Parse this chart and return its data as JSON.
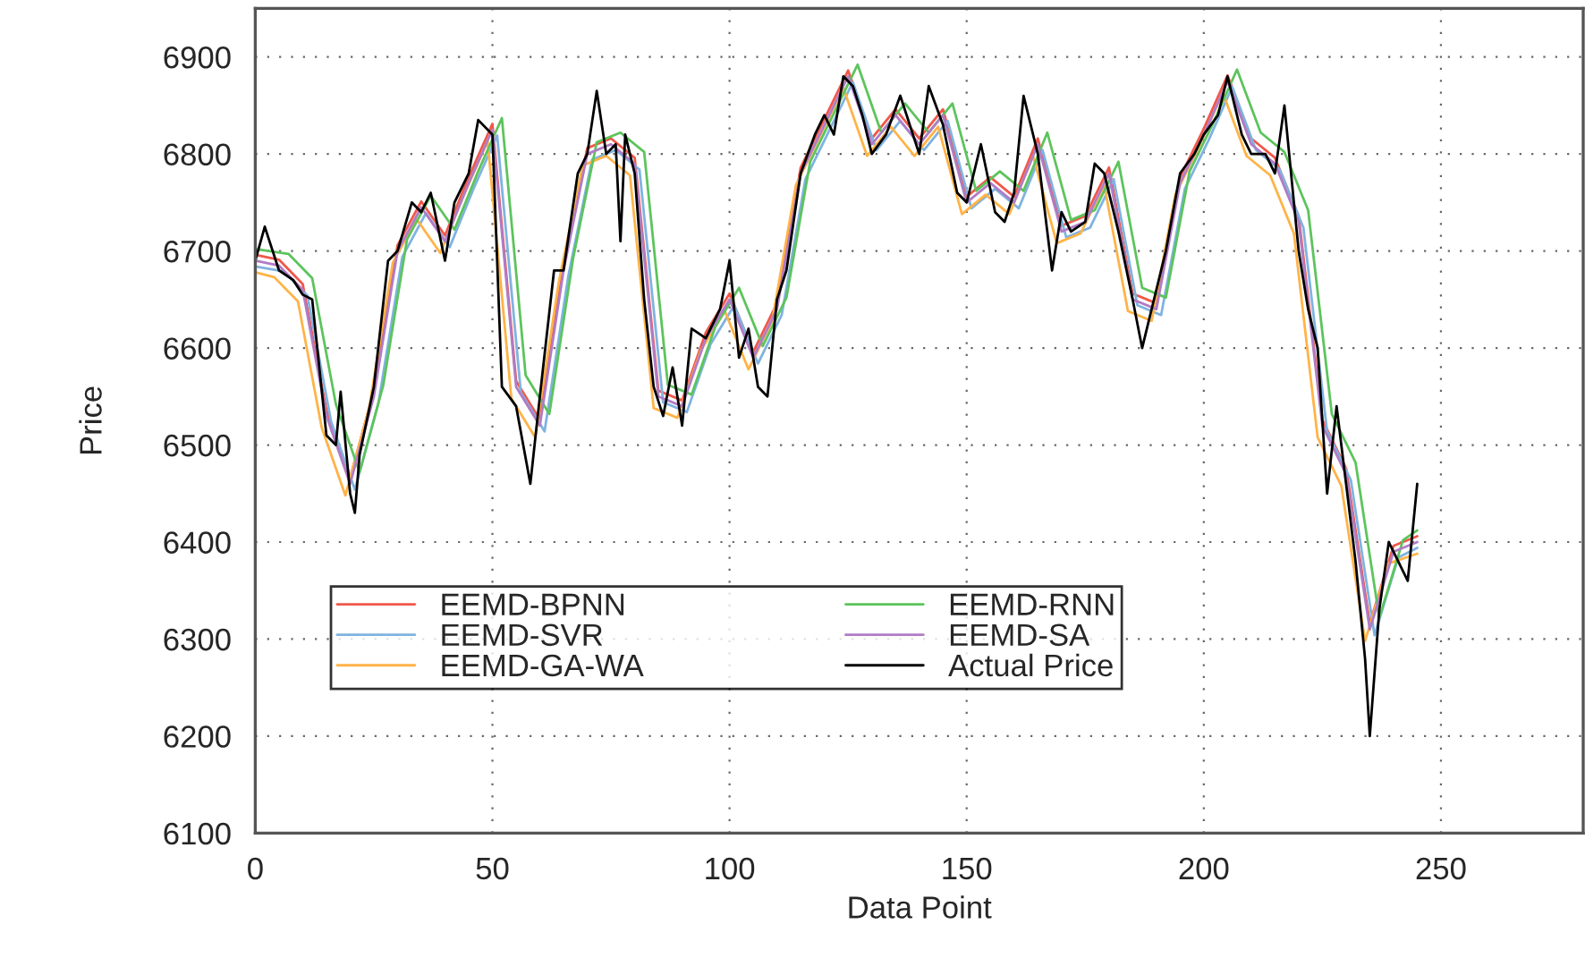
{
  "chart_data": {
    "type": "line",
    "xlabel": "Data Point",
    "ylabel": "Price",
    "xlim": [
      0,
      280
    ],
    "xticks": [
      0,
      50,
      100,
      150,
      200,
      250
    ],
    "ylim": [
      6100,
      6950
    ],
    "yticks": [
      6100,
      6200,
      6300,
      6400,
      6500,
      6600,
      6700,
      6800,
      6900
    ],
    "grid": true,
    "legend": "bottom left",
    "marker": "none",
    "line_style": "solid",
    "series": [
      {
        "name": "EEMD-BPNN",
        "color": "#f0584a",
        "x": [
          0,
          5,
          10,
          15,
          20,
          25,
          30,
          35,
          40,
          45,
          50,
          55,
          60,
          65,
          70,
          75,
          80,
          85,
          90,
          95,
          100,
          105,
          110,
          115,
          120,
          125,
          130,
          135,
          140,
          145,
          150,
          155,
          160,
          165,
          170,
          175,
          180,
          185,
          190,
          195,
          200,
          205,
          210,
          215,
          220,
          225,
          230,
          235,
          240,
          245
        ],
        "values": [
          6696,
          6691,
          6666,
          6536,
          6466,
          6556,
          6706,
          6751,
          6716,
          6776,
          6831,
          6566,
          6526,
          6686,
          6806,
          6816,
          6796,
          6556,
          6546,
          6616,
          6656,
          6596,
          6646,
          6786,
          6836,
          6886,
          6816,
          6846,
          6816,
          6846,
          6756,
          6776,
          6756,
          6816,
          6726,
          6736,
          6786,
          6656,
          6646,
          6776,
          6826,
          6881,
          6816,
          6796,
          6736,
          6526,
          6476,
          6316,
          6396,
          6406
        ]
      },
      {
        "name": "EEMD-SVR",
        "color": "#7fb3e0",
        "x": [
          0,
          6,
          11,
          16,
          21,
          26,
          31,
          36,
          41,
          46,
          51,
          56,
          61,
          66,
          71,
          76,
          81,
          86,
          91,
          96,
          101,
          106,
          111,
          116,
          121,
          126,
          131,
          136,
          141,
          146,
          151,
          156,
          161,
          166,
          171,
          176,
          181,
          186,
          191,
          196,
          201,
          206,
          211,
          216,
          221,
          226,
          231,
          236,
          241,
          245
        ],
        "values": [
          6684,
          6679,
          6654,
          6524,
          6454,
          6544,
          6694,
          6739,
          6704,
          6764,
          6819,
          6554,
          6514,
          6674,
          6794,
          6804,
          6784,
          6544,
          6534,
          6604,
          6644,
          6584,
          6634,
          6774,
          6824,
          6874,
          6804,
          6834,
          6804,
          6834,
          6744,
          6764,
          6744,
          6804,
          6714,
          6724,
          6774,
          6644,
          6634,
          6764,
          6814,
          6869,
          6804,
          6784,
          6724,
          6514,
          6464,
          6304,
          6384,
          6394
        ]
      },
      {
        "name": "EEMD-GA-WA",
        "color": "#ffb347",
        "x": [
          0,
          4,
          9,
          14,
          19,
          24,
          29,
          34,
          39,
          44,
          49,
          54,
          59,
          64,
          69,
          74,
          79,
          84,
          89,
          94,
          99,
          104,
          109,
          114,
          119,
          124,
          129,
          134,
          139,
          144,
          149,
          154,
          159,
          164,
          169,
          174,
          179,
          184,
          189,
          194,
          199,
          204,
          209,
          214,
          219,
          224,
          229,
          234,
          239,
          245
        ],
        "values": [
          6678,
          6673,
          6648,
          6518,
          6448,
          6538,
          6688,
          6733,
          6698,
          6758,
          6813,
          6548,
          6508,
          6668,
          6788,
          6798,
          6778,
          6538,
          6528,
          6598,
          6638,
          6578,
          6628,
          6768,
          6818,
          6868,
          6798,
          6828,
          6798,
          6828,
          6738,
          6758,
          6738,
          6798,
          6708,
          6718,
          6768,
          6638,
          6628,
          6758,
          6808,
          6863,
          6798,
          6778,
          6718,
          6508,
          6458,
          6298,
          6378,
          6388
        ]
      },
      {
        "name": "EEMD-RNN",
        "color": "#5cc45c",
        "x": [
          0,
          7,
          12,
          17,
          22,
          27,
          32,
          37,
          42,
          47,
          52,
          57,
          62,
          67,
          72,
          77,
          82,
          87,
          92,
          97,
          102,
          107,
          112,
          117,
          122,
          127,
          132,
          137,
          142,
          147,
          152,
          157,
          162,
          167,
          172,
          177,
          182,
          187,
          192,
          197,
          202,
          207,
          212,
          217,
          222,
          227,
          232,
          237,
          242,
          245
        ],
        "values": [
          6702,
          6697,
          6672,
          6542,
          6472,
          6562,
          6712,
          6757,
          6722,
          6782,
          6837,
          6572,
          6532,
          6692,
          6812,
          6822,
          6802,
          6562,
          6552,
          6622,
          6662,
          6602,
          6652,
          6792,
          6842,
          6892,
          6822,
          6852,
          6822,
          6852,
          6762,
          6782,
          6762,
          6822,
          6732,
          6742,
          6792,
          6662,
          6652,
          6782,
          6832,
          6887,
          6822,
          6802,
          6742,
          6532,
          6482,
          6322,
          6402,
          6412
        ]
      },
      {
        "name": "EEMD-SA",
        "color": "#b07cc6",
        "x": [
          0,
          5,
          10,
          15,
          20,
          25,
          30,
          35,
          40,
          45,
          50,
          55,
          60,
          65,
          70,
          75,
          80,
          85,
          90,
          95,
          100,
          105,
          110,
          115,
          120,
          125,
          130,
          135,
          140,
          145,
          150,
          155,
          160,
          165,
          170,
          175,
          180,
          185,
          190,
          195,
          200,
          205,
          210,
          215,
          220,
          225,
          230,
          235,
          240,
          245
        ],
        "values": [
          6690,
          6685,
          6660,
          6530,
          6460,
          6550,
          6700,
          6745,
          6710,
          6770,
          6825,
          6560,
          6520,
          6680,
          6800,
          6810,
          6790,
          6550,
          6540,
          6610,
          6650,
          6590,
          6640,
          6780,
          6830,
          6880,
          6810,
          6840,
          6810,
          6840,
          6750,
          6770,
          6750,
          6810,
          6720,
          6730,
          6780,
          6650,
          6640,
          6770,
          6820,
          6875,
          6810,
          6790,
          6730,
          6520,
          6470,
          6310,
          6390,
          6400
        ]
      },
      {
        "name": "Actual Price",
        "color": "#000000",
        "x": [
          0,
          2,
          5,
          8,
          10,
          12,
          15,
          17,
          18,
          20,
          21,
          22,
          25,
          28,
          30,
          33,
          35,
          37,
          40,
          42,
          45,
          47,
          50,
          52,
          55,
          58,
          60,
          63,
          65,
          68,
          70,
          72,
          74,
          76,
          77,
          78,
          80,
          82,
          84,
          86,
          88,
          90,
          92,
          95,
          98,
          100,
          102,
          104,
          106,
          108,
          110,
          112,
          115,
          118,
          120,
          122,
          124,
          126,
          128,
          130,
          133,
          136,
          140,
          142,
          145,
          148,
          150,
          153,
          156,
          158,
          160,
          162,
          165,
          168,
          170,
          172,
          175,
          177,
          179,
          182,
          185,
          187,
          189,
          192,
          195,
          198,
          200,
          203,
          205,
          208,
          210,
          213,
          215,
          217,
          220,
          222,
          224,
          226,
          228,
          230,
          232,
          234,
          235,
          237,
          239,
          241,
          243,
          245
        ],
        "values": [
          6690,
          6725,
          6680,
          6670,
          6655,
          6650,
          6510,
          6500,
          6555,
          6450,
          6430,
          6490,
          6560,
          6690,
          6700,
          6750,
          6740,
          6760,
          6690,
          6750,
          6780,
          6835,
          6820,
          6560,
          6540,
          6460,
          6550,
          6680,
          6680,
          6780,
          6800,
          6865,
          6800,
          6810,
          6710,
          6820,
          6780,
          6650,
          6560,
          6530,
          6580,
          6520,
          6620,
          6610,
          6640,
          6690,
          6590,
          6620,
          6560,
          6550,
          6650,
          6680,
          6780,
          6820,
          6840,
          6820,
          6880,
          6870,
          6840,
          6800,
          6820,
          6860,
          6800,
          6870,
          6830,
          6760,
          6750,
          6810,
          6740,
          6730,
          6760,
          6860,
          6800,
          6680,
          6740,
          6720,
          6730,
          6790,
          6780,
          6720,
          6650,
          6600,
          6640,
          6700,
          6780,
          6800,
          6820,
          6840,
          6880,
          6820,
          6800,
          6800,
          6780,
          6850,
          6700,
          6640,
          6600,
          6450,
          6540,
          6460,
          6380,
          6280,
          6200,
          6330,
          6400,
          6380,
          6360,
          6460
        ]
      }
    ]
  }
}
